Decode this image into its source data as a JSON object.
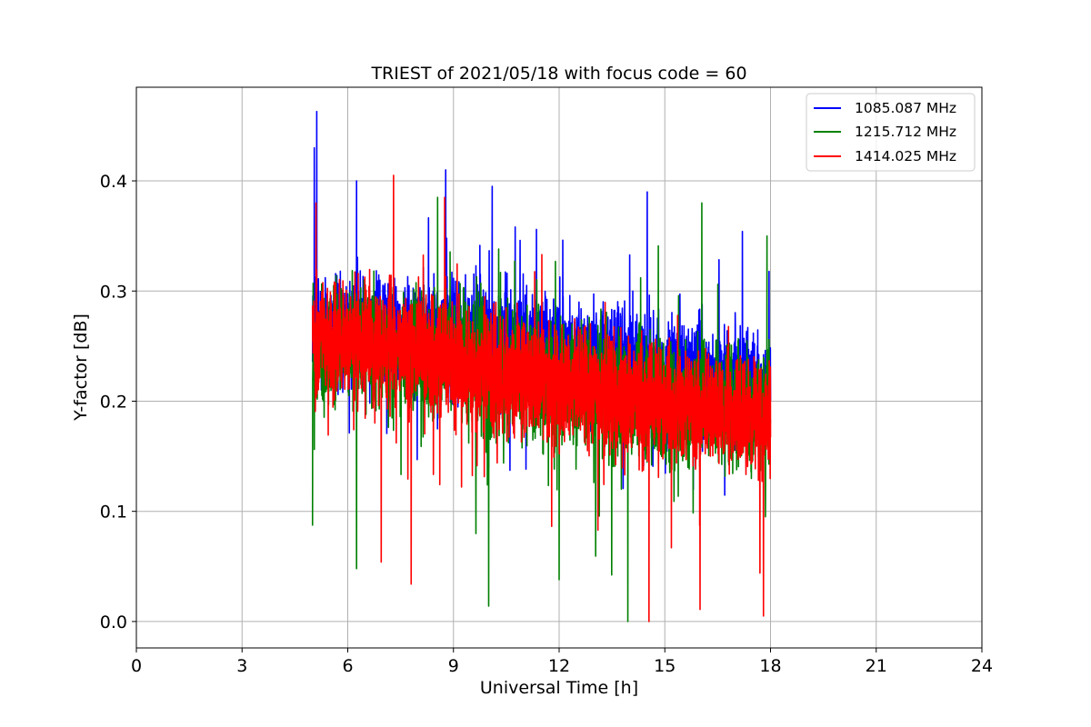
{
  "chart_data": {
    "type": "line",
    "title": "TRIEST of 2021/05/18 with focus code = 60",
    "xlabel": "Universal Time [h]",
    "ylabel": "Y-factor [dB]",
    "xlim": [
      0,
      24
    ],
    "ylim": [
      -0.024,
      0.485
    ],
    "xticks": [
      0,
      3,
      6,
      9,
      12,
      15,
      18,
      21,
      24
    ],
    "yticks": [
      0.0,
      0.1,
      0.2,
      0.3,
      0.4
    ],
    "ytick_labels": [
      "0.0",
      "0.1",
      "0.2",
      "0.3",
      "0.4"
    ],
    "grid": true,
    "legend_position": "upper right",
    "x_range_of_data": [
      5.0,
      18.0
    ],
    "series": [
      {
        "name": "1085.087 MHz",
        "color": "#0000ff",
        "trend": {
          "x": [
            5.0,
            6.0,
            9.0,
            12.0,
            15.0,
            18.0
          ],
          "center": [
            0.265,
            0.265,
            0.26,
            0.245,
            0.225,
            0.21
          ]
        },
        "spread": 0.065,
        "peaks": [
          {
            "x": 5.12,
            "y": 0.463
          },
          {
            "x": 5.05,
            "y": 0.43
          },
          {
            "x": 6.25,
            "y": 0.4
          },
          {
            "x": 8.78,
            "y": 0.41
          },
          {
            "x": 10.1,
            "y": 0.395
          },
          {
            "x": 14.5,
            "y": 0.39
          }
        ],
        "troughs": [
          {
            "x": 10.0,
            "y": 0.14
          }
        ]
      },
      {
        "name": "1215.712 MHz",
        "color": "#008000",
        "trend": {
          "x": [
            5.0,
            6.0,
            9.0,
            12.0,
            15.0,
            18.0
          ],
          "center": [
            0.245,
            0.25,
            0.24,
            0.215,
            0.2,
            0.19
          ]
        },
        "spread": 0.07,
        "peaks": [
          {
            "x": 8.55,
            "y": 0.385
          },
          {
            "x": 16.05,
            "y": 0.38
          },
          {
            "x": 17.9,
            "y": 0.35
          }
        ],
        "troughs": [
          {
            "x": 5.0,
            "y": 0.087
          },
          {
            "x": 6.25,
            "y": 0.048
          },
          {
            "x": 10.0,
            "y": 0.014
          },
          {
            "x": 13.95,
            "y": 0.0
          },
          {
            "x": 12.0,
            "y": 0.038
          }
        ]
      },
      {
        "name": "1414.025 MHz",
        "color": "#ff0000",
        "trend": {
          "x": [
            5.0,
            6.0,
            9.0,
            12.0,
            15.0,
            18.0
          ],
          "center": [
            0.255,
            0.255,
            0.235,
            0.215,
            0.195,
            0.185
          ]
        },
        "spread": 0.065,
        "peaks": [
          {
            "x": 7.3,
            "y": 0.405
          },
          {
            "x": 8.75,
            "y": 0.385
          },
          {
            "x": 5.1,
            "y": 0.38
          }
        ],
        "troughs": [
          {
            "x": 7.8,
            "y": 0.034
          },
          {
            "x": 6.95,
            "y": 0.054
          },
          {
            "x": 14.55,
            "y": 0.0
          },
          {
            "x": 16.0,
            "y": 0.011
          },
          {
            "x": 17.8,
            "y": 0.005
          },
          {
            "x": 17.7,
            "y": 0.044
          }
        ]
      }
    ]
  }
}
